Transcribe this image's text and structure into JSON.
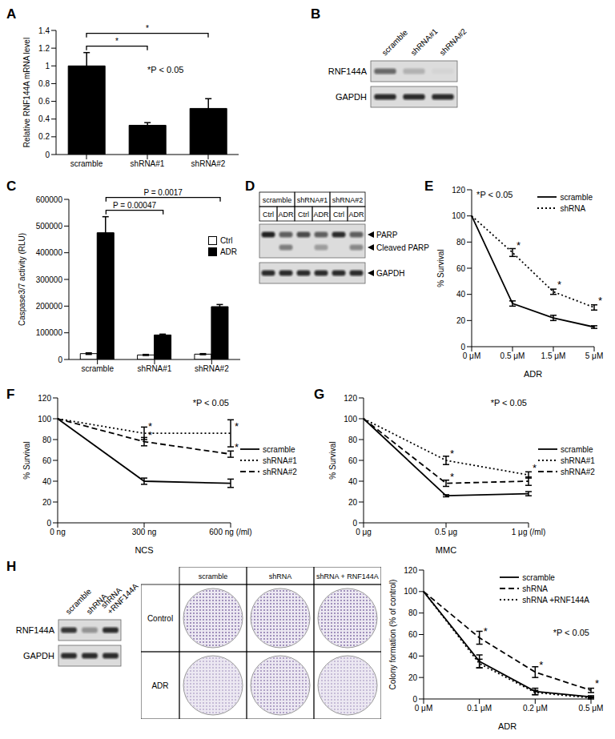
{
  "chart_data": [
    {
      "panel": "A",
      "type": "bar",
      "ylabel": "Relative RNF144A mRNA level",
      "categories": [
        "scramble",
        "shRNA#1",
        "shRNA#2"
      ],
      "values": [
        1.0,
        0.33,
        0.52
      ],
      "errors": [
        0.15,
        0.03,
        0.11
      ],
      "color": "#000000",
      "ylim": [
        0,
        1.4
      ],
      "yticks": [
        0,
        0.2,
        0.4,
        0.6,
        0.8,
        1,
        1.2,
        1.4
      ],
      "annotation": "*P < 0.05",
      "brackets": [
        {
          "from": 0,
          "to": 1,
          "label": "*"
        },
        {
          "from": 0,
          "to": 2,
          "label": "*"
        }
      ]
    },
    {
      "panel": "B",
      "type": "western_blot",
      "lanes": [
        "scramble",
        "shRNA#1",
        "shRNA#2"
      ],
      "label_side": "left",
      "boxes": [
        [
          {
            "label": "RNF144A",
            "intensity": [
              0.55,
              0.2,
              0.03
            ]
          }
        ],
        [
          {
            "label": "GAPDH",
            "intensity": [
              0.85,
              0.85,
              0.85
            ]
          }
        ]
      ]
    },
    {
      "panel": "C",
      "type": "bar",
      "ylabel": "Caspase3/7 activity (RLU)",
      "categories": [
        "scramble",
        "shRNA#1",
        "shRNA#2"
      ],
      "series": [
        {
          "name": "Ctrl",
          "color": "#ffffff",
          "values": [
            22000,
            17000,
            20000
          ],
          "errors": [
            3000,
            2000,
            2000
          ]
        },
        {
          "name": "ADR",
          "color": "#000000",
          "values": [
            475000,
            92000,
            198000
          ],
          "errors": [
            60000,
            3000,
            8000
          ]
        }
      ],
      "ylim": [
        0,
        600000
      ],
      "yticks": [
        0,
        100000,
        200000,
        300000,
        400000,
        500000,
        600000
      ],
      "legend": "top-right",
      "brackets": [
        {
          "from": 0,
          "to": 1,
          "series": 1,
          "label": "P = 0.00047"
        },
        {
          "from": 0,
          "to": 2,
          "series": 1,
          "label": "P = 0.0017"
        }
      ]
    },
    {
      "panel": "D",
      "type": "western_blot",
      "groups": [
        "scramble",
        "shRNA#1",
        "shRNA#2"
      ],
      "lanes": [
        "Ctrl",
        "ADR",
        "Ctrl",
        "ADR",
        "Ctrl",
        "ADR"
      ],
      "label_side": "right",
      "boxes": [
        [
          {
            "label": "PARP",
            "intensity": [
              0.9,
              0.6,
              0.7,
              0.6,
              0.85,
              0.6
            ]
          },
          {
            "label": "Cleaved PARP",
            "intensity": [
              0,
              0.45,
              0,
              0.3,
              0,
              0.4
            ]
          }
        ],
        [
          {
            "label": "GAPDH",
            "intensity": [
              0.85,
              0.85,
              0.85,
              0.85,
              0.85,
              0.85
            ]
          }
        ]
      ]
    },
    {
      "panel": "E",
      "type": "line",
      "ylabel": "% Survival",
      "xlabel": "ADR",
      "categories": [
        "0 μM",
        "0.5 μM",
        "1.5 μM",
        "5 μM"
      ],
      "series": [
        {
          "name": "scramble",
          "color": "#000000",
          "line_style": "solid",
          "values": [
            100,
            33,
            22,
            15
          ],
          "errors": [
            0,
            2,
            2,
            1
          ],
          "stars": []
        },
        {
          "name": "shRNA",
          "color": "#000000",
          "line_style": "dotted",
          "values": [
            100,
            72,
            42,
            30
          ],
          "errors": [
            0,
            3,
            2,
            2
          ],
          "stars": [
            1,
            2,
            3
          ]
        }
      ],
      "star": "*",
      "ylim": [
        0,
        120
      ],
      "yticks": [
        0,
        20,
        40,
        60,
        80,
        100,
        120
      ],
      "annotation": "*P < 0.05",
      "legend": "top-right"
    },
    {
      "panel": "F",
      "type": "line",
      "ylabel": "% Survival",
      "xlabel": "NCS",
      "categories": [
        "0 ng",
        "300 ng",
        "600 ng (/ml)"
      ],
      "series": [
        {
          "name": "scramble",
          "color": "#000000",
          "line_style": "solid",
          "values": [
            100,
            40,
            38
          ],
          "errors": [
            0,
            3,
            4
          ],
          "stars": []
        },
        {
          "name": "shRNA#1",
          "color": "#000000",
          "line_style": "dotted",
          "values": [
            100,
            86,
            86
          ],
          "errors": [
            0,
            6,
            13
          ],
          "stars": [
            1,
            2
          ]
        },
        {
          "name": "shRNA#2",
          "color": "#000000",
          "line_style": "dashed",
          "values": [
            100,
            78,
            66
          ],
          "errors": [
            0,
            4,
            3
          ],
          "stars": [
            1,
            2
          ]
        }
      ],
      "star": "*",
      "ylim": [
        0,
        120
      ],
      "yticks": [
        0,
        20,
        40,
        60,
        80,
        100,
        120
      ],
      "annotation": "*P < 0.05",
      "legend": "right"
    },
    {
      "panel": "G",
      "type": "line",
      "ylabel": "% Survival",
      "xlabel": "MMC",
      "categories": [
        "0 μg",
        "0.5 μg",
        "1 μg (/ml)"
      ],
      "series": [
        {
          "name": "scramble",
          "color": "#000000",
          "line_style": "solid",
          "values": [
            100,
            26,
            28
          ],
          "errors": [
            0,
            1,
            2
          ],
          "stars": []
        },
        {
          "name": "shRNA#1",
          "color": "#000000",
          "line_style": "dotted",
          "values": [
            100,
            60,
            46
          ],
          "errors": [
            0,
            4,
            3
          ],
          "stars": [
            1,
            2
          ]
        },
        {
          "name": "shRNA#2",
          "color": "#000000",
          "line_style": "dashed",
          "values": [
            100,
            38,
            40
          ],
          "errors": [
            0,
            3,
            4
          ],
          "stars": [
            1
          ]
        }
      ],
      "star": "*",
      "ylim": [
        0,
        120
      ],
      "yticks": [
        0,
        20,
        40,
        60,
        80,
        100,
        120
      ],
      "annotation": "*P < 0.05",
      "legend": "right"
    },
    {
      "panel": "H",
      "type": "western_blot",
      "lanes": [
        "scramble",
        "shRNA",
        "shRNA +RNF144A"
      ],
      "label_side": "left",
      "boxes": [
        [
          {
            "label": "RNF144A",
            "intensity": [
              0.8,
              0.35,
              0.85
            ]
          }
        ],
        [
          {
            "label": "GAPDH",
            "intensity": [
              0.85,
              0.85,
              0.85
            ]
          }
        ]
      ]
    },
    {
      "type": "colony_plates",
      "columns": [
        "scramble",
        "shRNA",
        "shRNA + RNF144A"
      ],
      "rows": [
        "Control",
        "ADR"
      ],
      "density": [
        [
          0.7,
          0.7,
          0.7
        ],
        [
          0.35,
          0.55,
          0.35
        ]
      ]
    },
    {
      "type": "line",
      "ylabel": "Colony formation (% of control)",
      "xlabel": "ADR",
      "categories": [
        "0 μM",
        "0.1 μM",
        "0.2 μM",
        "0.5 μM"
      ],
      "series": [
        {
          "name": "scramble",
          "color": "#000000",
          "line_style": "solid",
          "values": [
            100,
            35,
            7,
            2
          ],
          "errors": [
            0,
            6,
            3,
            1
          ],
          "stars": []
        },
        {
          "name": "shRNA",
          "color": "#000000",
          "line_style": "dashed",
          "values": [
            100,
            57,
            25,
            8
          ],
          "errors": [
            0,
            6,
            5,
            2
          ],
          "stars": [
            1,
            2,
            3
          ]
        },
        {
          "name": "shRNA +RNF144A",
          "color": "#000000",
          "line_style": "dotted",
          "values": [
            100,
            33,
            6,
            1
          ],
          "errors": [
            0,
            4,
            2,
            1
          ],
          "stars": []
        }
      ],
      "star": "*",
      "ylim": [
        0,
        120
      ],
      "yticks": [
        0,
        20,
        40,
        60,
        80,
        100,
        120
      ],
      "annotation": "*P < 0.05",
      "legend": "top-right"
    }
  ]
}
